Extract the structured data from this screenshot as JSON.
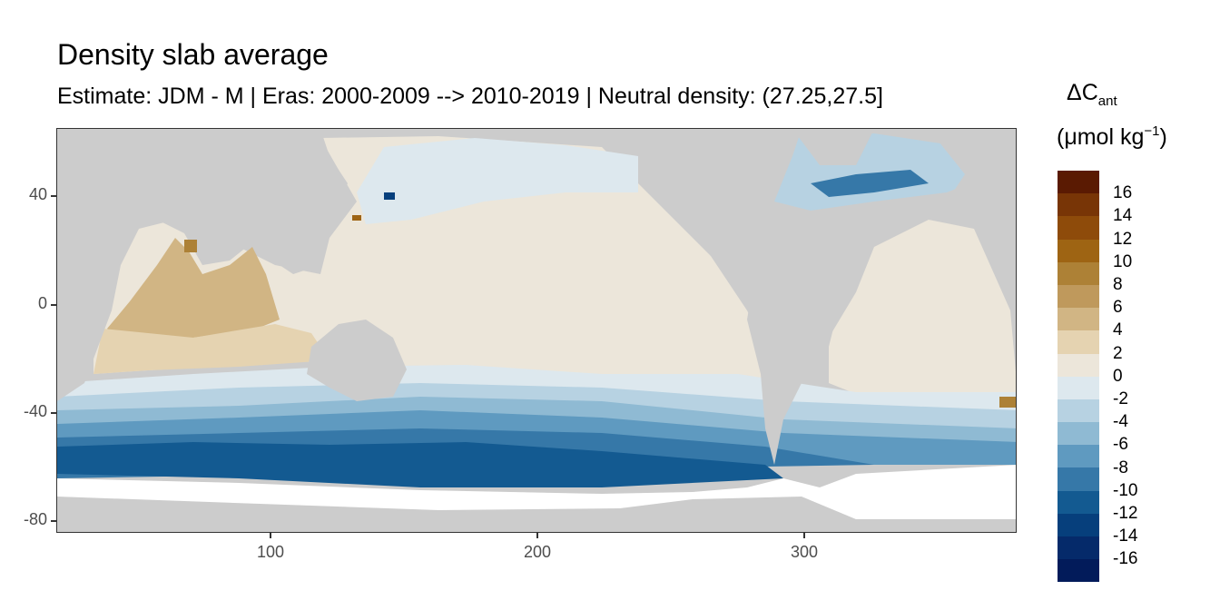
{
  "title": "Density slab average",
  "subtitle": "Estimate: JDM - M | Eras: 2000-2009 --> 2010-2019 | Neutral density: (27.25,27.5]",
  "legend": {
    "title_main": "ΔC",
    "title_sub": "ant",
    "unit_open": "(μmol kg",
    "unit_sup": "−1",
    "unit_close": ")",
    "labels": [
      "16",
      "14",
      "12",
      "10",
      "8",
      "6",
      "4",
      "2",
      "0",
      "-2",
      "-4",
      "-6",
      "-8",
      "-10",
      "-12",
      "-14",
      "-16"
    ],
    "colors": [
      "#5a1a02",
      "#783506",
      "#8e4b0a",
      "#9e6413",
      "#ad8136",
      "#bf995c",
      "#d1b584",
      "#e5d3b1",
      "#ece6da",
      "#dde8ee",
      "#b7d2e2",
      "#8fbad3",
      "#5f9ac0",
      "#3678a8",
      "#135a91",
      "#063f7c",
      "#052a6a",
      "#021b5a"
    ]
  },
  "chart_data": {
    "type": "heatmap",
    "title": "Density slab average",
    "subtitle": "Estimate: JDM - M | Eras: 2000-2009 --> 2010-2019 | Neutral density: (27.25,27.5]",
    "x_ticks": [
      100,
      200,
      300
    ],
    "y_ticks": [
      40,
      0,
      -40,
      -80
    ],
    "xlim": [
      20,
      380
    ],
    "ylim": [
      -85,
      65
    ],
    "colorbar_label": "ΔCant (μmol kg−1)",
    "colorbar_breaks": [
      16,
      14,
      12,
      10,
      8,
      6,
      4,
      2,
      0,
      -2,
      -4,
      -6,
      -8,
      -10,
      -12,
      -14,
      -16
    ],
    "legend_position": "right",
    "land_color": "#cccccc",
    "no_data_color": "#ffffff"
  }
}
